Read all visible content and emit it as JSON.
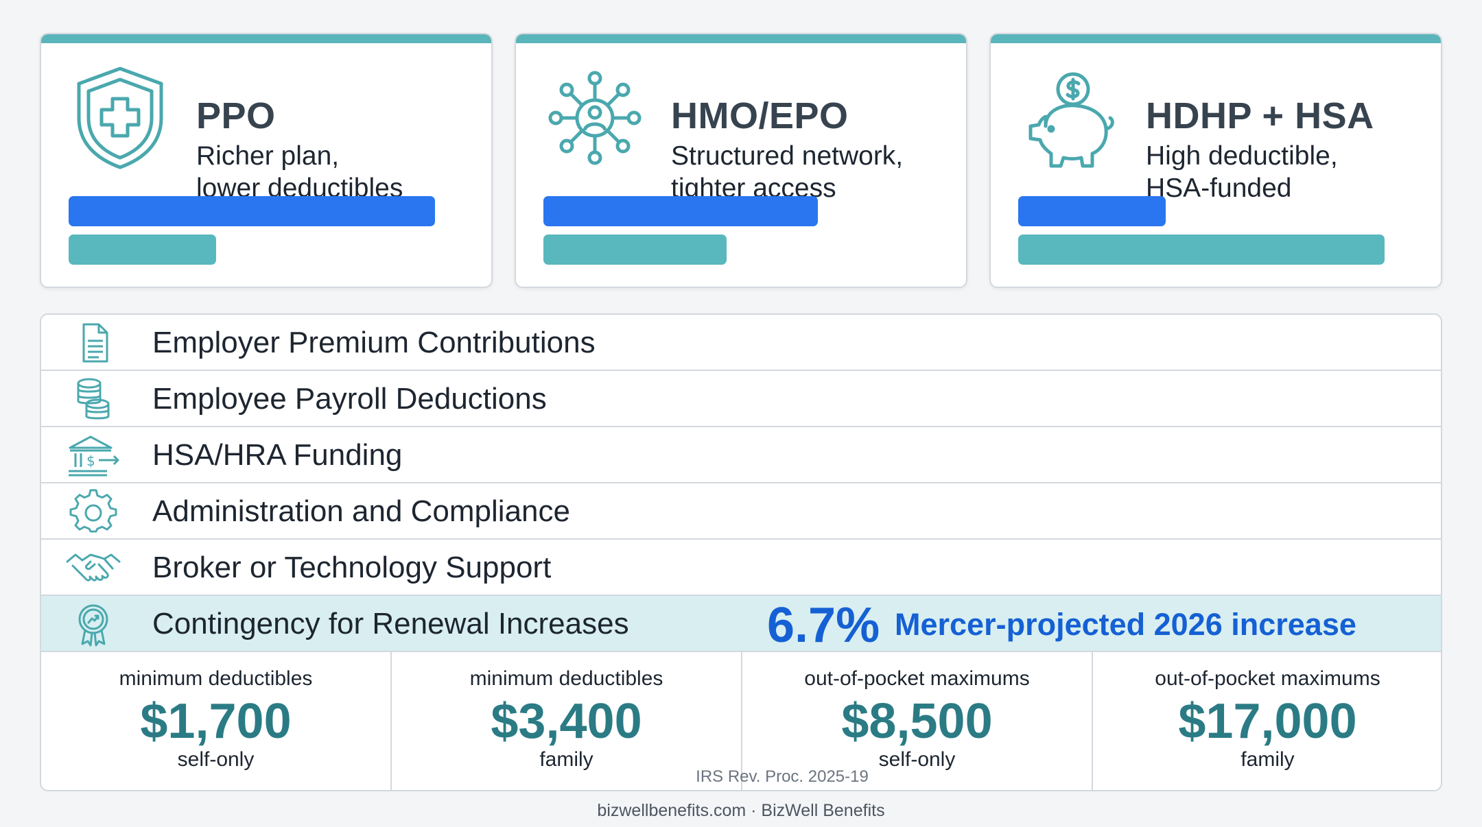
{
  "cards": [
    {
      "icon": "shield-cross-icon",
      "title": "PPO",
      "line1": "Richer plan,",
      "line2": "lower deductibles",
      "blue_fill": 0.92,
      "teal_fill": 0.37
    },
    {
      "icon": "network-person-icon",
      "title": "HMO/EPO",
      "line1": "Structured network,",
      "line2": "tighter access",
      "blue_fill": 0.69,
      "teal_fill": 0.46
    },
    {
      "icon": "piggy-bank-icon",
      "title": "HDHP + HSA",
      "line1": "High deductible,",
      "line2": "HSA-funded",
      "blue_fill": 0.37,
      "teal_fill": 0.92
    }
  ],
  "rows": [
    {
      "icon": "document-icon",
      "label": "Employer Premium Contributions"
    },
    {
      "icon": "coin-stack-icon",
      "label": "Employee Payroll Deductions"
    },
    {
      "icon": "bank-transfer-icon",
      "label": "HSA/HRA Funding"
    },
    {
      "icon": "gear-icon",
      "label": "Administration and Compliance"
    },
    {
      "icon": "handshake-icon",
      "label": "Broker or Technology Support"
    },
    {
      "icon": "award-ribbon-icon",
      "label": "Contingency for Renewal Increases"
    }
  ],
  "highlight": {
    "value": "6.7%",
    "text": "Mercer-projected 2026 increase"
  },
  "limits": [
    {
      "label": "minimum deductibles",
      "amount": "$1,700",
      "sub": "self-only"
    },
    {
      "label": "minimum deductibles",
      "amount": "$3,400",
      "sub": "family"
    },
    {
      "label": "out-of-pocket maximums",
      "amount": "$8,500",
      "sub": "self-only"
    },
    {
      "label": "out-of-pocket maximums",
      "amount": "$17,000",
      "sub": "family"
    }
  ],
  "source": "IRS Rev. Proc. 2025-19",
  "footer": "bizwellbenefits.com · BizWell Benefits",
  "colors": {
    "accent_blue": "#2976f0",
    "accent_teal": "#58b8bd",
    "stat_blue": "#1560d4",
    "amount_teal": "#2b7b85"
  }
}
